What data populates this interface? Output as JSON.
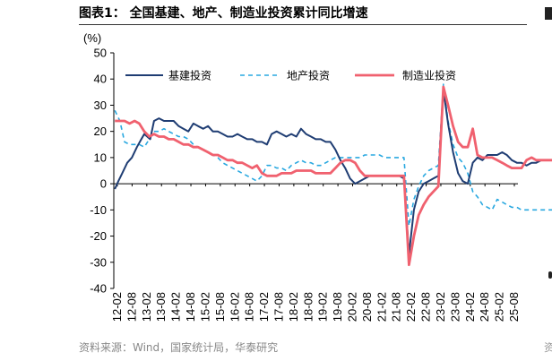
{
  "title": "图表1： 全国基建、地产、制造业投资累计同比增速",
  "source": "资料来源：Wind，国家统计局，华泰研究",
  "edge_glyph": "资",
  "colors": {
    "infra": "#1f3d73",
    "real_estate": "#29a8e0",
    "manufacturing": "#f0616f",
    "axis": "#000000"
  },
  "chart_data": {
    "type": "line",
    "ylabel": "(%)",
    "ylim": [
      -40,
      50
    ],
    "yticks": [
      -40,
      -30,
      -20,
      -10,
      0,
      10,
      20,
      30,
      40,
      50
    ],
    "xticks": [
      "12-02",
      "12-08",
      "13-02",
      "13-08",
      "14-02",
      "14-08",
      "15-02",
      "15-08",
      "16-02",
      "16-08",
      "17-02",
      "17-08",
      "18-02",
      "18-08",
      "19-02",
      "19-08",
      "20-02",
      "20-08",
      "21-02",
      "21-08",
      "22-02",
      "22-08",
      "23-02",
      "23-08",
      "24-02",
      "24-08",
      "25-02",
      "25-08"
    ],
    "grid": false,
    "legend": "top-left",
    "series": [
      {
        "name": "基建投资",
        "style": "solid",
        "points": [
          [
            0,
            -2
          ],
          [
            0.12,
            1
          ],
          [
            0.25,
            4
          ],
          [
            0.42,
            8
          ],
          [
            0.58,
            10
          ],
          [
            0.75,
            14
          ],
          [
            0.9,
            17
          ],
          [
            1,
            19
          ],
          [
            1.1,
            18
          ],
          [
            1.2,
            17
          ],
          [
            1.33,
            24
          ],
          [
            1.5,
            25
          ],
          [
            1.67,
            24
          ],
          [
            1.83,
            24
          ],
          [
            2,
            24
          ],
          [
            2.17,
            22
          ],
          [
            2.33,
            21
          ],
          [
            2.5,
            20
          ],
          [
            2.67,
            23
          ],
          [
            2.83,
            22
          ],
          [
            3,
            21
          ],
          [
            3.17,
            22
          ],
          [
            3.33,
            20
          ],
          [
            3.5,
            20
          ],
          [
            3.67,
            19
          ],
          [
            3.83,
            18
          ],
          [
            4,
            18
          ],
          [
            4.17,
            19
          ],
          [
            4.33,
            18
          ],
          [
            4.5,
            17
          ],
          [
            4.67,
            17
          ],
          [
            4.83,
            16
          ],
          [
            5,
            16
          ],
          [
            5.17,
            15
          ],
          [
            5.33,
            19
          ],
          [
            5.5,
            20
          ],
          [
            5.67,
            19
          ],
          [
            5.83,
            18
          ],
          [
            6,
            19
          ],
          [
            6.17,
            18
          ],
          [
            6.33,
            21
          ],
          [
            6.5,
            19
          ],
          [
            6.67,
            18
          ],
          [
            6.83,
            17
          ],
          [
            7,
            17
          ],
          [
            7.17,
            16
          ],
          [
            7.33,
            16
          ],
          [
            7.5,
            13
          ],
          [
            7.67,
            9
          ],
          [
            7.83,
            6
          ],
          [
            8,
            2
          ],
          [
            8.17,
            0
          ],
          [
            8.33,
            1
          ],
          [
            8.5,
            2
          ],
          [
            8.67,
            3
          ],
          [
            8.83,
            3
          ],
          [
            9,
            3
          ],
          [
            9.17,
            3
          ],
          [
            9.33,
            3
          ],
          [
            9.5,
            3
          ],
          [
            9.67,
            3
          ],
          [
            9.83,
            2
          ],
          [
            10,
            -27
          ],
          [
            10.17,
            -10
          ],
          [
            10.33,
            -3
          ],
          [
            10.5,
            0
          ],
          [
            10.67,
            1
          ],
          [
            10.83,
            2
          ],
          [
            11,
            3
          ],
          [
            11.17,
            36
          ],
          [
            11.33,
            23
          ],
          [
            11.5,
            12
          ],
          [
            11.67,
            4
          ],
          [
            11.83,
            1
          ],
          [
            12,
            0
          ],
          [
            12.17,
            8
          ],
          [
            12.33,
            10
          ],
          [
            12.5,
            9
          ],
          [
            12.67,
            11
          ],
          [
            12.83,
            11
          ],
          [
            13,
            11
          ],
          [
            13.17,
            12
          ],
          [
            13.33,
            11
          ],
          [
            13.5,
            9
          ],
          [
            13.67,
            8
          ],
          [
            13.83,
            8
          ],
          [
            14,
            7
          ],
          [
            14.17,
            8
          ],
          [
            14.33,
            8
          ],
          [
            14.5,
            9
          ],
          [
            14.67,
            9
          ],
          [
            14.83,
            9
          ],
          [
            15,
            9
          ],
          [
            15.17,
            11
          ],
          [
            15.33,
            10
          ],
          [
            15.5,
            8
          ],
          [
            15.67,
            5
          ],
          [
            15.83,
            2
          ]
        ]
      },
      {
        "name": "地产投资",
        "style": "dashed",
        "points": [
          [
            0,
            28
          ],
          [
            0.17,
            24
          ],
          [
            0.33,
            16
          ],
          [
            0.5,
            15
          ],
          [
            0.67,
            15
          ],
          [
            0.83,
            15
          ],
          [
            1,
            14
          ],
          [
            1.17,
            17
          ],
          [
            1.33,
            20
          ],
          [
            1.5,
            20
          ],
          [
            1.67,
            21
          ],
          [
            1.83,
            20
          ],
          [
            2,
            19
          ],
          [
            2.17,
            18
          ],
          [
            2.33,
            18
          ],
          [
            2.5,
            17
          ],
          [
            2.67,
            15
          ],
          [
            2.83,
            14
          ],
          [
            3,
            13
          ],
          [
            3.17,
            12
          ],
          [
            3.33,
            11
          ],
          [
            3.5,
            10
          ],
          [
            3.67,
            8
          ],
          [
            3.83,
            7
          ],
          [
            4,
            6
          ],
          [
            4.17,
            5
          ],
          [
            4.33,
            4
          ],
          [
            4.5,
            3
          ],
          [
            4.67,
            2
          ],
          [
            4.83,
            1
          ],
          [
            5,
            3
          ],
          [
            5.17,
            7
          ],
          [
            5.33,
            7
          ],
          [
            5.5,
            6
          ],
          [
            5.67,
            6
          ],
          [
            5.83,
            5
          ],
          [
            6,
            7
          ],
          [
            6.17,
            8
          ],
          [
            6.33,
            9
          ],
          [
            6.5,
            8
          ],
          [
            6.67,
            8
          ],
          [
            6.83,
            7
          ],
          [
            7,
            7
          ],
          [
            7.17,
            8
          ],
          [
            7.33,
            9
          ],
          [
            7.5,
            10
          ],
          [
            7.67,
            10
          ],
          [
            7.83,
            10
          ],
          [
            8,
            10
          ],
          [
            8.17,
            10
          ],
          [
            8.33,
            10
          ],
          [
            8.5,
            11
          ],
          [
            8.67,
            11
          ],
          [
            8.83,
            11
          ],
          [
            9,
            11
          ],
          [
            9.17,
            10
          ],
          [
            9.33,
            10
          ],
          [
            9.5,
            10
          ],
          [
            9.67,
            10
          ],
          [
            9.83,
            10
          ],
          [
            10,
            -16
          ],
          [
            10.17,
            -6
          ],
          [
            10.33,
            -1
          ],
          [
            10.5,
            3
          ],
          [
            10.67,
            5
          ],
          [
            10.83,
            6
          ],
          [
            11,
            7
          ],
          [
            11.17,
            38
          ],
          [
            11.33,
            24
          ],
          [
            11.5,
            15
          ],
          [
            11.67,
            10
          ],
          [
            11.83,
            8
          ],
          [
            12,
            4
          ],
          [
            12.17,
            -3
          ],
          [
            12.33,
            -5
          ],
          [
            12.5,
            -8
          ],
          [
            12.67,
            -9
          ],
          [
            12.83,
            -10
          ],
          [
            13,
            -6
          ],
          [
            13.17,
            -7
          ],
          [
            13.33,
            -8
          ],
          [
            13.5,
            -9
          ],
          [
            13.67,
            -9
          ],
          [
            13.83,
            -10
          ],
          [
            14,
            -10
          ],
          [
            14.17,
            -10
          ],
          [
            14.33,
            -10
          ],
          [
            14.5,
            -10
          ],
          [
            14.67,
            -10
          ],
          [
            14.83,
            -10
          ],
          [
            15,
            -10
          ],
          [
            15.17,
            -11
          ],
          [
            15.33,
            -11
          ],
          [
            15.5,
            -12
          ],
          [
            15.67,
            -14
          ],
          [
            15.83,
            -15
          ]
        ]
      },
      {
        "name": "制造业投资",
        "style": "solid",
        "points": [
          [
            0,
            24
          ],
          [
            0.17,
            24
          ],
          [
            0.33,
            24
          ],
          [
            0.5,
            23
          ],
          [
            0.67,
            24
          ],
          [
            0.83,
            23
          ],
          [
            1,
            20
          ],
          [
            1.17,
            18
          ],
          [
            1.33,
            19
          ],
          [
            1.5,
            18
          ],
          [
            1.67,
            18
          ],
          [
            1.83,
            17
          ],
          [
            2,
            17
          ],
          [
            2.17,
            16
          ],
          [
            2.33,
            15
          ],
          [
            2.5,
            15
          ],
          [
            2.67,
            14
          ],
          [
            2.83,
            14
          ],
          [
            3,
            13
          ],
          [
            3.17,
            12
          ],
          [
            3.33,
            11
          ],
          [
            3.5,
            11
          ],
          [
            3.67,
            10
          ],
          [
            3.83,
            9
          ],
          [
            4,
            9
          ],
          [
            4.17,
            8
          ],
          [
            4.33,
            8
          ],
          [
            4.5,
            7
          ],
          [
            4.67,
            6
          ],
          [
            4.83,
            7
          ],
          [
            5,
            4
          ],
          [
            5.17,
            3
          ],
          [
            5.33,
            3
          ],
          [
            5.5,
            3
          ],
          [
            5.67,
            4
          ],
          [
            5.83,
            4
          ],
          [
            6,
            4
          ],
          [
            6.17,
            5
          ],
          [
            6.33,
            5
          ],
          [
            6.5,
            5
          ],
          [
            6.67,
            5
          ],
          [
            6.83,
            4
          ],
          [
            7,
            4
          ],
          [
            7.17,
            4
          ],
          [
            7.33,
            4
          ],
          [
            7.5,
            6
          ],
          [
            7.67,
            8
          ],
          [
            7.83,
            9
          ],
          [
            8,
            9
          ],
          [
            8.17,
            8
          ],
          [
            8.33,
            5
          ],
          [
            8.5,
            3
          ],
          [
            8.67,
            3
          ],
          [
            8.83,
            3
          ],
          [
            9,
            3
          ],
          [
            9.17,
            3
          ],
          [
            9.33,
            3
          ],
          [
            9.5,
            3
          ],
          [
            9.67,
            3
          ],
          [
            9.83,
            3
          ],
          [
            10,
            -31
          ],
          [
            10.17,
            -20
          ],
          [
            10.33,
            -12
          ],
          [
            10.5,
            -8
          ],
          [
            10.67,
            -5
          ],
          [
            10.83,
            -3
          ],
          [
            11,
            -1
          ],
          [
            11.17,
            37
          ],
          [
            11.33,
            30
          ],
          [
            11.5,
            22
          ],
          [
            11.67,
            16
          ],
          [
            11.83,
            14
          ],
          [
            12,
            14
          ],
          [
            12.17,
            21
          ],
          [
            12.33,
            11
          ],
          [
            12.5,
            10
          ],
          [
            12.67,
            10
          ],
          [
            12.83,
            10
          ],
          [
            13,
            9
          ],
          [
            13.17,
            8
          ],
          [
            13.33,
            7
          ],
          [
            13.5,
            6
          ],
          [
            13.67,
            6
          ],
          [
            13.83,
            6
          ],
          [
            14,
            9
          ],
          [
            14.17,
            10
          ],
          [
            14.33,
            9
          ],
          [
            14.5,
            9
          ],
          [
            14.67,
            9
          ],
          [
            14.83,
            9
          ],
          [
            15,
            9
          ],
          [
            15.17,
            9
          ],
          [
            15.33,
            9
          ],
          [
            15.5,
            8
          ],
          [
            15.67,
            6
          ],
          [
            15.83,
            3
          ]
        ]
      }
    ]
  }
}
